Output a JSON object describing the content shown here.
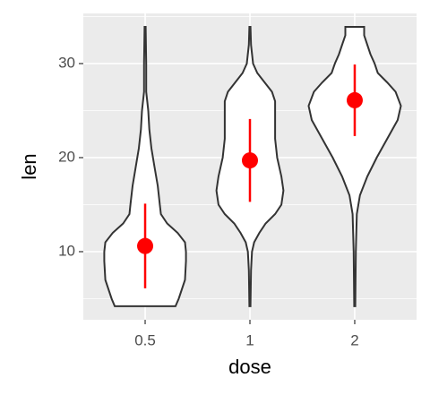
{
  "chart_data": {
    "type": "violin",
    "x_label": "dose",
    "y_label": "len",
    "categories": [
      "0.5",
      "1",
      "2"
    ],
    "violins": [
      {
        "y": [
          4.2,
          5,
          7,
          9,
          10,
          11,
          12,
          13,
          14,
          15,
          17,
          19,
          21,
          23,
          25,
          27,
          30,
          33.9
        ],
        "half_width": [
          0.29,
          0.32,
          0.38,
          0.39,
          0.39,
          0.38,
          0.31,
          0.21,
          0.15,
          0.14,
          0.12,
          0.09,
          0.06,
          0.04,
          0.03,
          0.01,
          0.01,
          0.005
        ]
      },
      {
        "y": [
          4.2,
          8,
          10,
          11,
          12,
          13,
          14,
          15,
          16.5,
          18,
          20,
          22,
          24,
          26,
          27,
          28,
          29,
          30,
          32,
          33.9
        ],
        "half_width": [
          0.005,
          0.01,
          0.02,
          0.04,
          0.09,
          0.15,
          0.24,
          0.3,
          0.32,
          0.3,
          0.26,
          0.24,
          0.24,
          0.24,
          0.21,
          0.14,
          0.07,
          0.03,
          0.01,
          0.005
        ]
      },
      {
        "y": [
          4.2,
          10,
          14,
          16,
          18,
          20,
          22,
          24,
          25.5,
          27,
          28,
          29,
          30,
          31,
          32,
          33,
          33.9
        ],
        "half_width": [
          0.005,
          0.01,
          0.02,
          0.05,
          0.12,
          0.21,
          0.31,
          0.41,
          0.44,
          0.39,
          0.31,
          0.22,
          0.19,
          0.15,
          0.12,
          0.09,
          0.09
        ]
      }
    ],
    "means": [
      10.6,
      19.7,
      26.1
    ],
    "sd": [
      4.5,
      4.4,
      3.8
    ],
    "point_color": "#ff0000",
    "violin_fill": "#ffffff",
    "violin_stroke": "#333333",
    "ylim": [
      2.76,
      35.33
    ],
    "yticks": [
      10,
      20,
      30
    ],
    "minor_yticks": [
      5,
      15,
      25,
      35
    ],
    "grid": true
  }
}
